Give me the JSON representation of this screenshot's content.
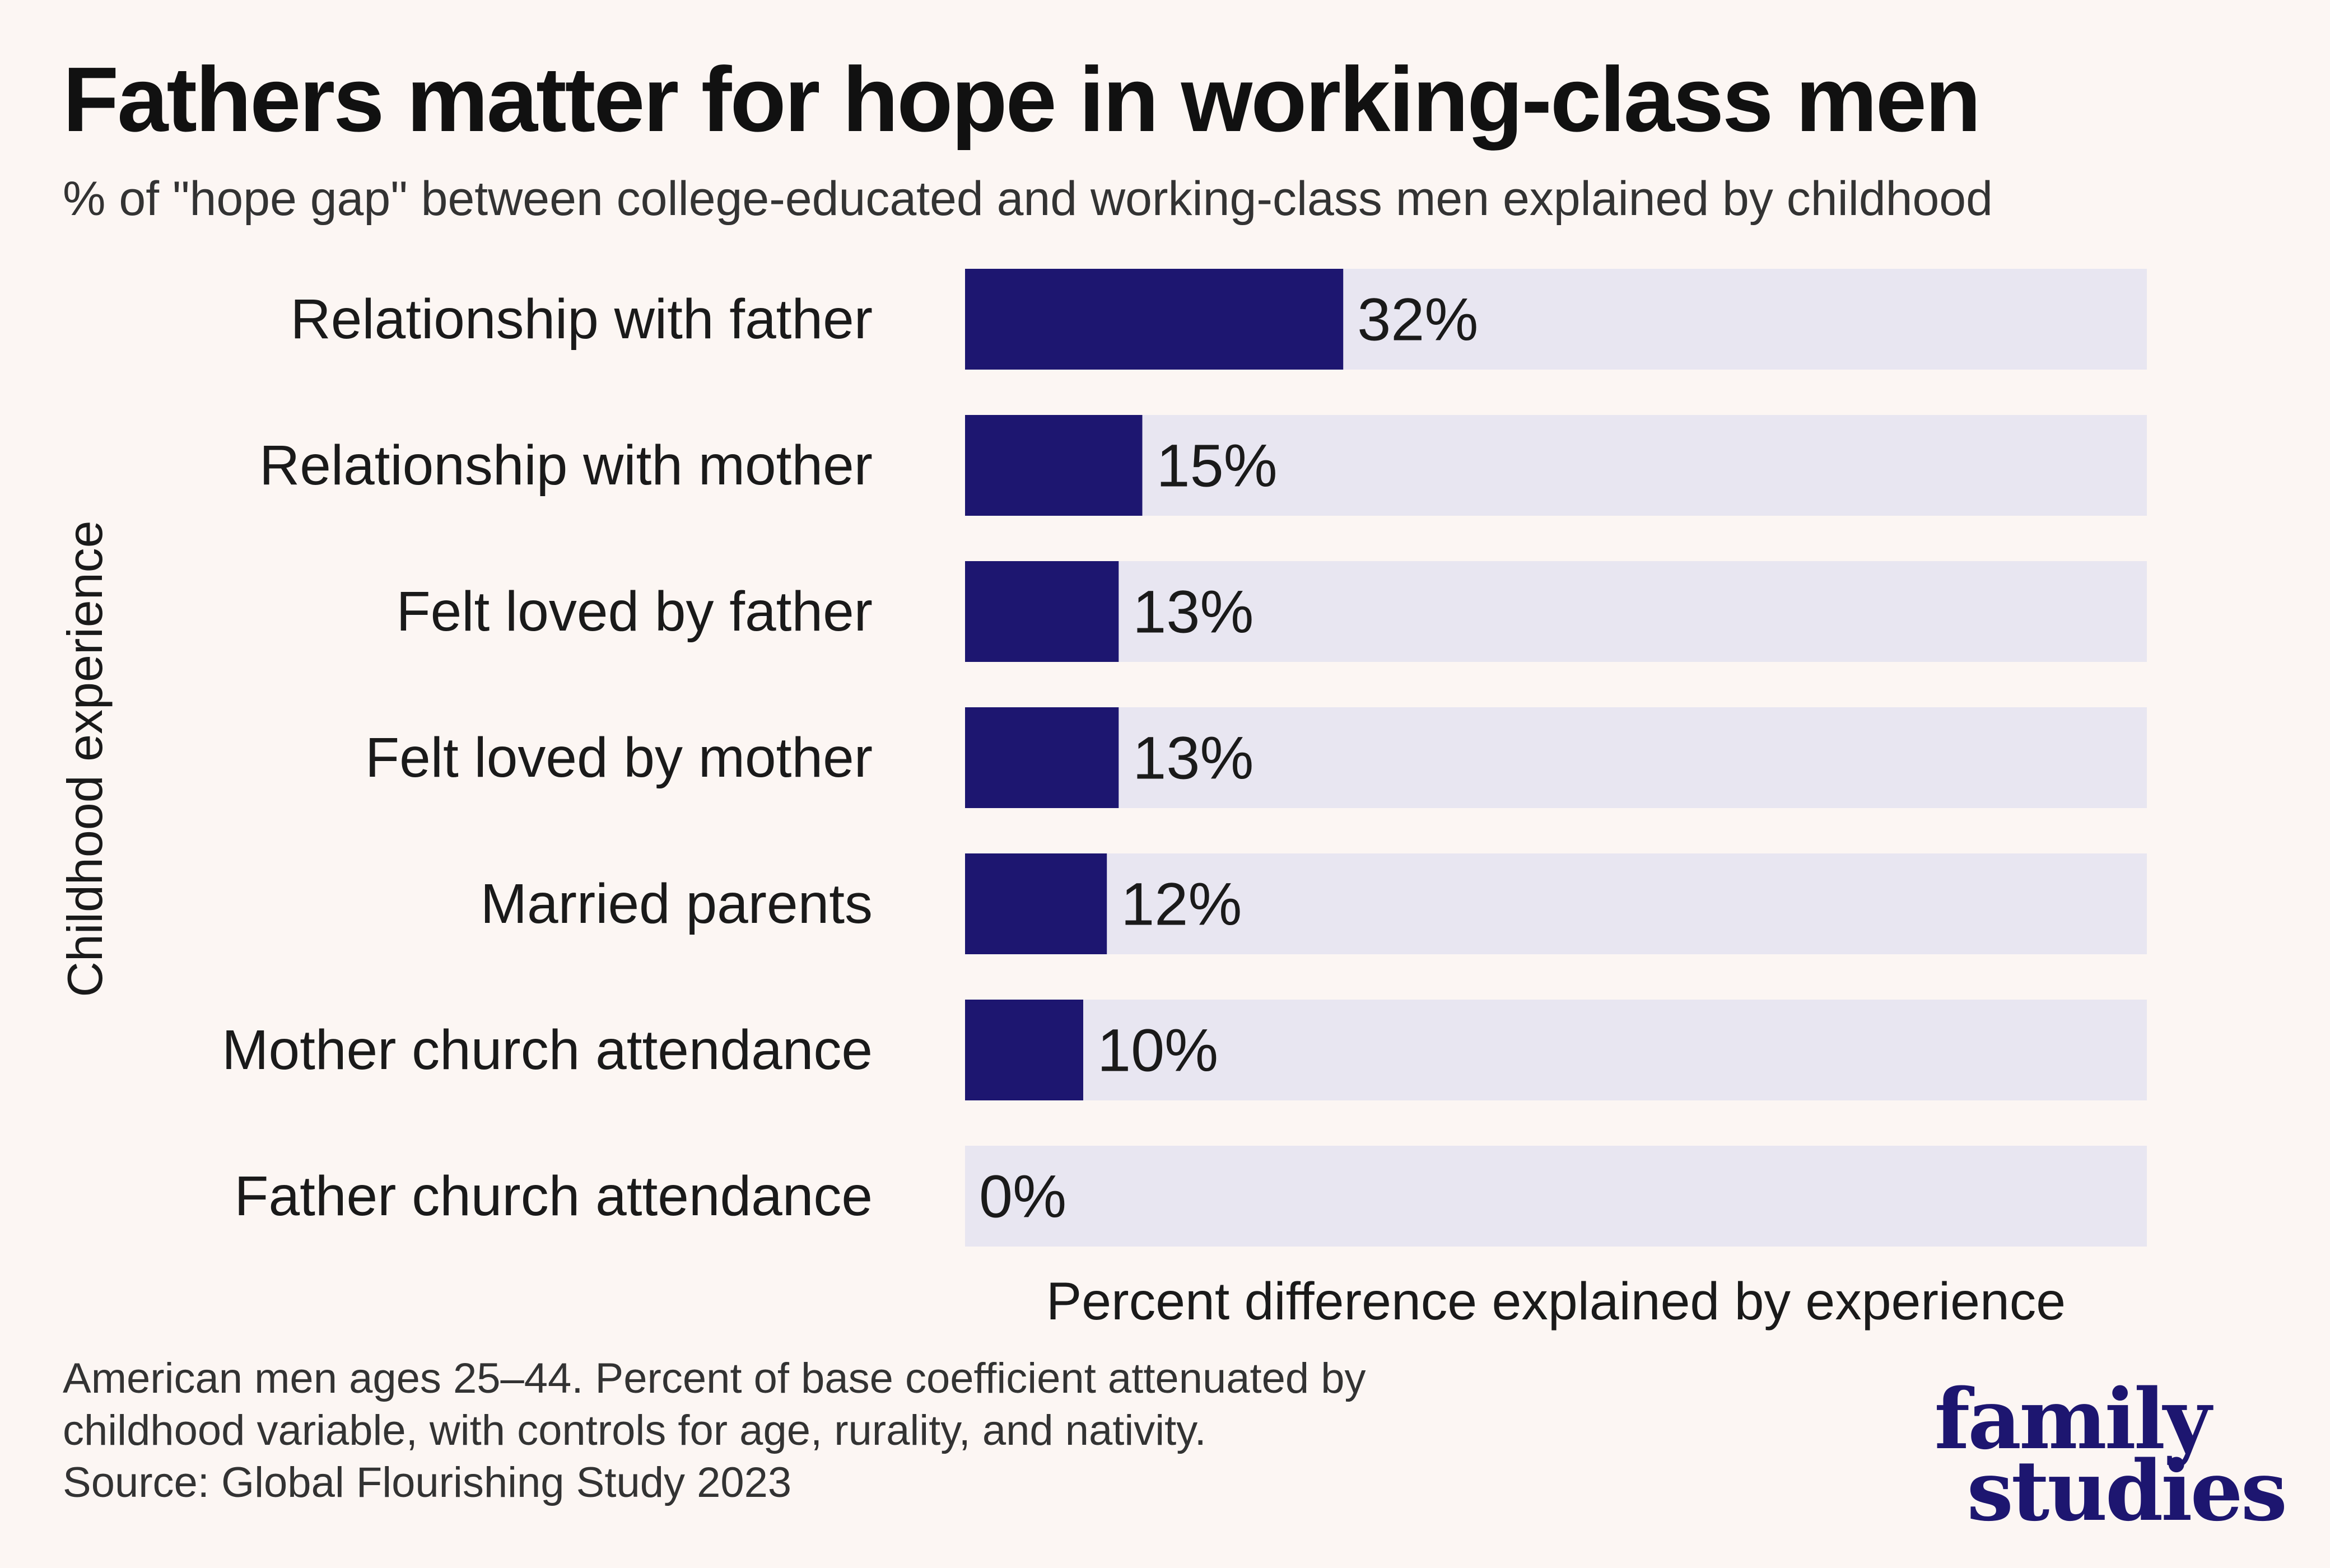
{
  "title": "Fathers matter for hope in working-class men",
  "subtitle": "% of \"hope gap\" between college-educated and working-class men explained by childhood",
  "footnote": {
    "line1": "American men ages 25–44. Percent of base coefficient attenuated by",
    "line2": "childhood variable, with controls for age, rurality, and nativity.",
    "line3": "Source: Global Flourishing Study 2023"
  },
  "logo": {
    "line1": "family",
    "line2": "studies"
  },
  "colors": {
    "bar": "#1d1670",
    "track": "#e8e6f1",
    "background": "#fcf6f3",
    "logo": "#1d1670"
  },
  "chart_data": {
    "type": "bar",
    "orientation": "horizontal",
    "title": "Fathers matter for hope in working-class men",
    "xlabel": "Percent difference explained by experience",
    "ylabel": "Childhood experience",
    "xlim": [
      0,
      100
    ],
    "grid": false,
    "legend": "none",
    "categories": [
      "Relationship with father",
      "Relationship with mother",
      "Felt loved by father",
      "Felt loved by mother",
      "Married parents",
      "Mother church attendance",
      "Father church attendance"
    ],
    "values": [
      32,
      15,
      13,
      13,
      12,
      10,
      0
    ],
    "value_labels": [
      "32%",
      "15%",
      "13%",
      "13%",
      "12%",
      "10%",
      "0%"
    ]
  }
}
